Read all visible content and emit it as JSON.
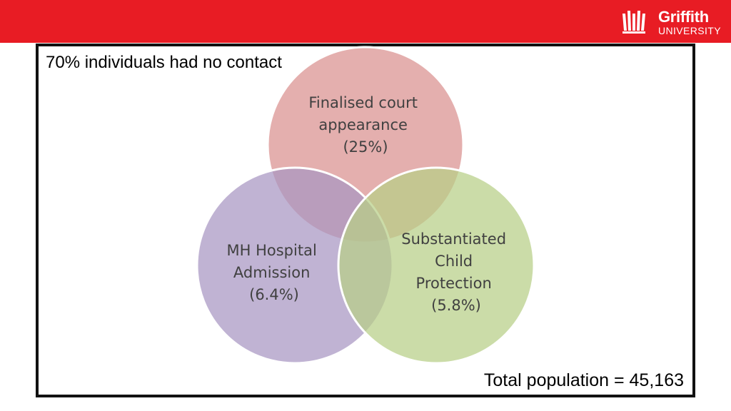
{
  "header": {
    "brand_color": "#e81c24",
    "logo": {
      "name": "Griffith",
      "sub": "UNIVERSITY",
      "icon": "griffith-crest-icon"
    }
  },
  "headline": "70% individuals had no contact",
  "footer_note": "Total population = 45,163",
  "venn": {
    "sets": [
      {
        "id": "court",
        "label_lines": [
          "Finalised court",
          "appearance",
          "(25%)"
        ],
        "color": "#d9908f"
      },
      {
        "id": "mh",
        "label_lines": [
          "MH Hospital",
          "Admission",
          "(6.4%)"
        ],
        "color": "#a896c2"
      },
      {
        "id": "child",
        "label_lines": [
          "Substantiated",
          "Child",
          "Protection",
          "(5.8%)"
        ],
        "color": "#b7cf86"
      }
    ]
  }
}
